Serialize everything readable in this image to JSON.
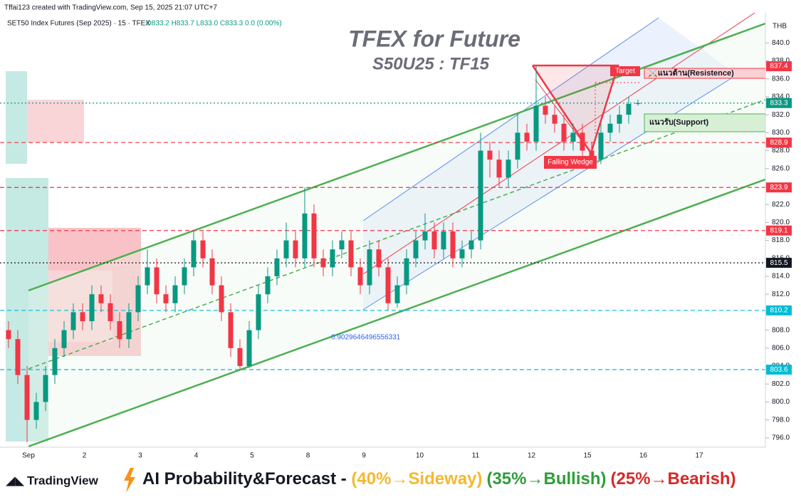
{
  "header": {
    "credit": "Tffai123 created with TradingView.com, Sep 15, 2025 21:07 UTC+7",
    "symbol": "SET50 Index Futures (Sep 2025) · 15 · TFEX",
    "ohlc": "O833.2 H833.7 L833.0 C833.3 0.0 (0.00%)"
  },
  "chart_data": {
    "type": "candlestick",
    "title": "TFEX for Future",
    "subtitle": "S50U25 : TF15",
    "currency": "THB",
    "up_color": "#089981",
    "down_color": "#f23645",
    "categories": [
      "Sep",
      "2",
      "3",
      "4",
      "5",
      "8",
      "9",
      "10",
      "11",
      "12",
      "15",
      "16",
      "17"
    ],
    "candles": [
      [
        808,
        809,
        806,
        807
      ],
      [
        807,
        808,
        802,
        803
      ],
      [
        803,
        804,
        795.5,
        798
      ],
      [
        798,
        801,
        797,
        800
      ],
      [
        800,
        804,
        799,
        803
      ],
      [
        803,
        807,
        802,
        806
      ],
      [
        806,
        809,
        805,
        808
      ],
      [
        808,
        811,
        807,
        810
      ],
      [
        810,
        811,
        808,
        809
      ],
      [
        809,
        813,
        808,
        812
      ],
      [
        812,
        813,
        810,
        811
      ],
      [
        811,
        812,
        808,
        809
      ],
      [
        809,
        810,
        806,
        807
      ],
      [
        807,
        811,
        806,
        810
      ],
      [
        810,
        814,
        809,
        813
      ],
      [
        813,
        817,
        812,
        815
      ],
      [
        815,
        816,
        811,
        812
      ],
      [
        812,
        813,
        810,
        811
      ],
      [
        811,
        814,
        810,
        813
      ],
      [
        813,
        816,
        812,
        815
      ],
      [
        815,
        819.1,
        814,
        818
      ],
      [
        818,
        819,
        815,
        816
      ],
      [
        816,
        817,
        812,
        813
      ],
      [
        813,
        814,
        809,
        810
      ],
      [
        810,
        811,
        805,
        806
      ],
      [
        806,
        807,
        803.6,
        804
      ],
      [
        804,
        809,
        803.8,
        808
      ],
      [
        808,
        813,
        807,
        812
      ],
      [
        812,
        815,
        811,
        814
      ],
      [
        814,
        817,
        813,
        816
      ],
      [
        816,
        820,
        815,
        818
      ],
      [
        818,
        819,
        815,
        816
      ],
      [
        816,
        823.9,
        815,
        821
      ],
      [
        821,
        822,
        815,
        816
      ],
      [
        816,
        817,
        814,
        815
      ],
      [
        815,
        818,
        814,
        817
      ],
      [
        817,
        819,
        816,
        818
      ],
      [
        818,
        819,
        814,
        815
      ],
      [
        815,
        816,
        812,
        813
      ],
      [
        813,
        818,
        812,
        817
      ],
      [
        817,
        818,
        814,
        815
      ],
      [
        815,
        816,
        810.2,
        811
      ],
      [
        811,
        814,
        810.5,
        813
      ],
      [
        813,
        817,
        812,
        816
      ],
      [
        816,
        819,
        815,
        818
      ],
      [
        818,
        821,
        817,
        819
      ],
      [
        819,
        820,
        816,
        817
      ],
      [
        817,
        820,
        816,
        819
      ],
      [
        819,
        820,
        815,
        816
      ],
      [
        816,
        818,
        815,
        817
      ],
      [
        817,
        819,
        816,
        818
      ],
      [
        818,
        830,
        817,
        828
      ],
      [
        828,
        829,
        825,
        827
      ],
      [
        827,
        828,
        824,
        825
      ],
      [
        825,
        828,
        824,
        827
      ],
      [
        827,
        832,
        826,
        830
      ],
      [
        830,
        831,
        828,
        829
      ],
      [
        829,
        837.4,
        828,
        833
      ],
      [
        833,
        834,
        831,
        832
      ],
      [
        832,
        833,
        830,
        831
      ],
      [
        831,
        832,
        828,
        829
      ],
      [
        829,
        831,
        828,
        830
      ],
      [
        830,
        831,
        827,
        828
      ],
      [
        828,
        829,
        826,
        827
      ],
      [
        827,
        831,
        826.5,
        830
      ],
      [
        830,
        832,
        829,
        831
      ],
      [
        831,
        833,
        830,
        832
      ],
      [
        832,
        834,
        831,
        833.2
      ],
      [
        833.2,
        833.7,
        833.0,
        833.3
      ]
    ],
    "ylim": [
      795.2,
      842.8
    ],
    "yticks": [
      {
        "value": 796,
        "label": "796.0"
      },
      {
        "value": 798,
        "label": "798.0"
      },
      {
        "value": 800,
        "label": "800.0"
      },
      {
        "value": 802,
        "label": "802.0"
      },
      {
        "value": 804,
        "label": "804.0"
      },
      {
        "value": 806,
        "label": "806.0"
      },
      {
        "value": 808,
        "label": "808.0"
      },
      {
        "value": 810,
        "label": "810.0"
      },
      {
        "value": 812,
        "label": "812.0"
      },
      {
        "value": 814,
        "label": "814.0"
      },
      {
        "value": 816,
        "label": "816.0"
      },
      {
        "value": 818,
        "label": "818.0"
      },
      {
        "value": 820,
        "label": "820.0"
      },
      {
        "value": 822,
        "label": "822.0"
      },
      {
        "value": 824,
        "label": "824.0"
      },
      {
        "value": 826,
        "label": "826.0"
      },
      {
        "value": 828,
        "label": "828.0"
      },
      {
        "value": 830,
        "label": "830.0"
      },
      {
        "value": 832,
        "label": "832.0"
      },
      {
        "value": 834,
        "label": "834.0"
      },
      {
        "value": 836,
        "label": "836.0"
      },
      {
        "value": 838,
        "label": "838.0"
      },
      {
        "value": 840,
        "label": "840.0"
      }
    ],
    "levels": [
      {
        "value": 837.4,
        "color": "#f23645",
        "style": "none"
      },
      {
        "value": 833.3,
        "color": "#089981",
        "style": "dotted"
      },
      {
        "value": 828.9,
        "color": "#f23645",
        "style": "dashed"
      },
      {
        "value": 823.9,
        "color": "#f23645",
        "style": "dashed"
      },
      {
        "value": 819.1,
        "color": "#f23645",
        "style": "dashed"
      },
      {
        "value": 815.5,
        "color": "#131722",
        "style": "dotted"
      },
      {
        "value": 810.2,
        "color": "#00bcd4",
        "style": "dashed"
      },
      {
        "value": 803.6,
        "color": "#00bcd4",
        "style": "dashed"
      }
    ],
    "annotations": {
      "target": "Target",
      "resistance": "⚔️แนวต้าน(Resistence)",
      "support": "แนวรับ(Support)",
      "pattern": "Falling Wedge",
      "fib": "0.9029646496556331"
    }
  },
  "footer": {
    "brand": "TradingView",
    "headline": "AI Probability&Forecast - ",
    "sideway": "(40%→Sideway)",
    "bullish": "(35%→Bullish)",
    "bearish": "(25%→Bearish)"
  }
}
